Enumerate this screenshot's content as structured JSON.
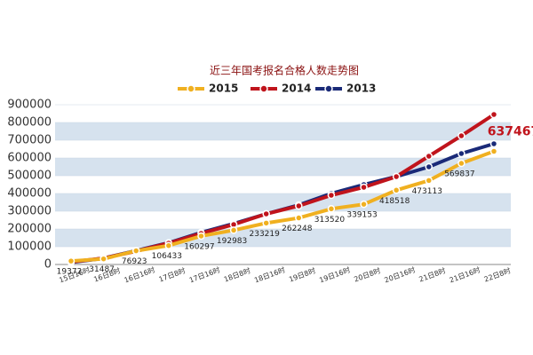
{
  "chart_data": {
    "type": "line",
    "title": "近三年国考报名合格人数走势图",
    "categories": [
      "15日16时",
      "16日8时",
      "16日16时",
      "17日8时",
      "17日16时",
      "18日8时",
      "18日16时",
      "19日8时",
      "19日16时",
      "20日8时",
      "20日16时",
      "21日8时",
      "21日16时",
      "22日8时"
    ],
    "series": [
      {
        "name": "2015",
        "color": "#f0b020",
        "values": [
          19372,
          31487,
          76923,
          106433,
          160297,
          192983,
          233219,
          262248,
          313520,
          339153,
          418518,
          473113,
          569837,
          637467
        ]
      },
      {
        "name": "2014",
        "color": "#c0141c",
        "values": [
          15000,
          35000,
          75000,
          120000,
          175000,
          225000,
          285000,
          330000,
          390000,
          435000,
          495000,
          610000,
          725000,
          845000
        ]
      },
      {
        "name": "2013",
        "color": "#1a2a78",
        "values": [
          12000,
          35000,
          78000,
          122000,
          180000,
          230000,
          285000,
          335000,
          400000,
          450000,
          495000,
          550000,
          625000,
          680000
        ]
      }
    ],
    "ylim": [
      0,
      900000
    ],
    "yticks": [
      0,
      100000,
      200000,
      300000,
      400000,
      500000,
      600000,
      700000,
      800000,
      900000
    ],
    "grid": true,
    "legend": "top"
  }
}
